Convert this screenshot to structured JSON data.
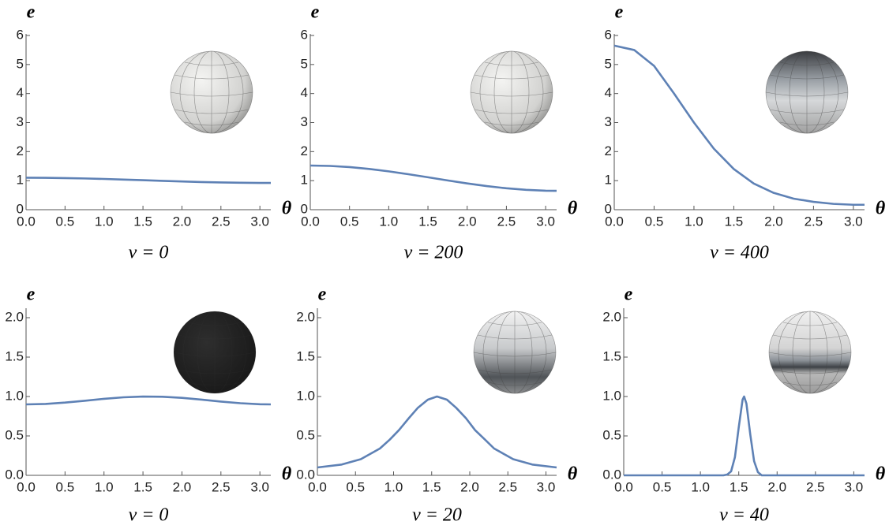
{
  "chart_data": [
    {
      "type": "line",
      "title": "v = 0",
      "xlabel": "θ",
      "ylabel": "e",
      "color": "#5e81b5",
      "x": [
        0,
        0.25,
        0.5,
        0.75,
        1.0,
        1.25,
        1.5,
        1.75,
        2.0,
        2.25,
        2.5,
        2.75,
        3.0,
        3.14
      ],
      "values": [
        1.1,
        1.097,
        1.089,
        1.076,
        1.059,
        1.038,
        1.016,
        0.994,
        0.973,
        0.953,
        0.938,
        0.927,
        0.921,
        0.92
      ],
      "xlim": [
        0,
        3.14
      ],
      "ylim": [
        0,
        6
      ],
      "xticks": [
        {
          "value": 0,
          "label": "0.0"
        },
        0.5,
        {
          "value": 1,
          "label": "1.0"
        },
        1.5,
        {
          "value": 2,
          "label": "2.0"
        },
        2.5,
        {
          "value": 3,
          "label": "3.0"
        }
      ],
      "yticks": [
        0,
        1,
        2,
        3,
        4,
        5,
        6
      ]
    },
    {
      "type": "line",
      "title": "v = 200",
      "xlabel": "θ",
      "ylabel": "e",
      "color": "#5e81b5",
      "x": [
        0,
        0.25,
        0.5,
        0.75,
        1.0,
        1.25,
        1.5,
        1.75,
        2.0,
        2.25,
        2.5,
        2.75,
        3.0,
        3.14
      ],
      "values": [
        1.52,
        1.507,
        1.467,
        1.403,
        1.32,
        1.222,
        1.116,
        1.008,
        0.904,
        0.812,
        0.737,
        0.683,
        0.654,
        0.65
      ],
      "xlim": [
        0,
        3.14
      ],
      "ylim": [
        0,
        6
      ],
      "xticks": [
        {
          "value": 0,
          "label": "0.0"
        },
        0.5,
        {
          "value": 1,
          "label": "1.0"
        },
        1.5,
        {
          "value": 2,
          "label": "2.0"
        },
        2.5,
        {
          "value": 3,
          "label": "3.0"
        }
      ],
      "yticks": [
        0,
        1,
        2,
        3,
        4,
        5,
        6
      ]
    },
    {
      "type": "line",
      "title": "v = 400",
      "xlabel": "θ",
      "ylabel": "e",
      "color": "#5e81b5",
      "x": [
        0,
        0.25,
        0.5,
        0.75,
        1.0,
        1.25,
        1.5,
        1.75,
        2.0,
        2.25,
        2.5,
        2.75,
        3.0,
        3.14
      ],
      "values": [
        5.65,
        5.5,
        4.95,
        4.0,
        3.0,
        2.1,
        1.4,
        0.9,
        0.58,
        0.38,
        0.27,
        0.2,
        0.17,
        0.17
      ],
      "xlim": [
        0,
        3.14
      ],
      "ylim": [
        0,
        6
      ],
      "xticks": [
        {
          "value": 0,
          "label": "0.0"
        },
        0.5,
        {
          "value": 1,
          "label": "1.0"
        },
        1.5,
        {
          "value": 2,
          "label": "2.0"
        },
        2.5,
        {
          "value": 3,
          "label": "3.0"
        }
      ],
      "yticks": [
        0,
        1,
        2,
        3,
        4,
        5,
        6
      ]
    },
    {
      "type": "line",
      "title": "v = 0",
      "xlabel": "θ",
      "ylabel": "e",
      "color": "#5e81b5",
      "x": [
        0,
        0.25,
        0.5,
        0.75,
        1.0,
        1.25,
        1.5,
        1.75,
        2.0,
        2.25,
        2.5,
        2.75,
        3.0,
        3.14
      ],
      "values": [
        0.9,
        0.906,
        0.923,
        0.946,
        0.971,
        0.99,
        0.9995,
        0.997,
        0.983,
        0.961,
        0.936,
        0.915,
        0.902,
        0.9
      ],
      "xlim": [
        0,
        3.14
      ],
      "ylim": [
        0,
        2.1
      ],
      "xticks": [
        {
          "value": 0,
          "label": "0.0"
        },
        0.5,
        {
          "value": 1,
          "label": "1.0"
        },
        1.5,
        {
          "value": 2,
          "label": "2.0"
        },
        2.5,
        {
          "value": 3,
          "label": "3.0"
        }
      ],
      "yticks": [
        {
          "value": 0,
          "label": "0.0"
        },
        0.5,
        {
          "value": 1,
          "label": "1.0"
        },
        1.5,
        {
          "value": 2,
          "label": "2.0"
        }
      ]
    },
    {
      "type": "line",
      "title": "v = 20",
      "xlabel": "θ",
      "ylabel": "e",
      "color": "#5e81b5",
      "x": [
        0,
        0.32,
        0.57,
        0.82,
        0.95,
        1.07,
        1.2,
        1.32,
        1.45,
        1.57,
        1.7,
        1.82,
        1.95,
        2.07,
        2.2,
        2.32,
        2.57,
        2.82,
        3.14
      ],
      "values": [
        0.1,
        0.137,
        0.205,
        0.34,
        0.453,
        0.573,
        0.725,
        0.858,
        0.96,
        1.0,
        0.96,
        0.858,
        0.725,
        0.573,
        0.453,
        0.34,
        0.205,
        0.137,
        0.1
      ],
      "xlim": [
        0,
        3.14
      ],
      "ylim": [
        0,
        2.1
      ],
      "xticks": [
        {
          "value": 0,
          "label": "0.0"
        },
        0.5,
        {
          "value": 1,
          "label": "1.0"
        },
        1.5,
        {
          "value": 2,
          "label": "2.0"
        },
        2.5,
        {
          "value": 3,
          "label": "3.0"
        }
      ],
      "yticks": [
        {
          "value": 0,
          "label": "0.0"
        },
        0.5,
        {
          "value": 1,
          "label": "1.0"
        },
        1.5,
        {
          "value": 2,
          "label": "2.0"
        }
      ]
    },
    {
      "type": "line",
      "title": "v = 40",
      "xlabel": "θ",
      "ylabel": "e",
      "color": "#5e81b5",
      "x": [
        0,
        1.2,
        1.3,
        1.35,
        1.4,
        1.45,
        1.5,
        1.55,
        1.57,
        1.6,
        1.65,
        1.7,
        1.75,
        1.8,
        1.85,
        1.95,
        3.14
      ],
      "values": [
        0,
        0,
        0,
        0.01,
        0.05,
        0.23,
        0.61,
        0.96,
        1.0,
        0.91,
        0.52,
        0.18,
        0.04,
        0,
        0,
        0,
        0
      ],
      "xlim": [
        0,
        3.14
      ],
      "ylim": [
        0,
        2.1
      ],
      "xticks": [
        {
          "value": 0,
          "label": "0.0"
        },
        0.5,
        {
          "value": 1,
          "label": "1.0"
        },
        1.5,
        {
          "value": 2,
          "label": "2.0"
        },
        2.5,
        {
          "value": 3,
          "label": "3.0"
        }
      ],
      "yticks": [
        {
          "value": 0,
          "label": "0.0"
        },
        0.5,
        {
          "value": 1,
          "label": "1.0"
        },
        1.5,
        {
          "value": 2,
          "label": "2.0"
        }
      ]
    }
  ]
}
